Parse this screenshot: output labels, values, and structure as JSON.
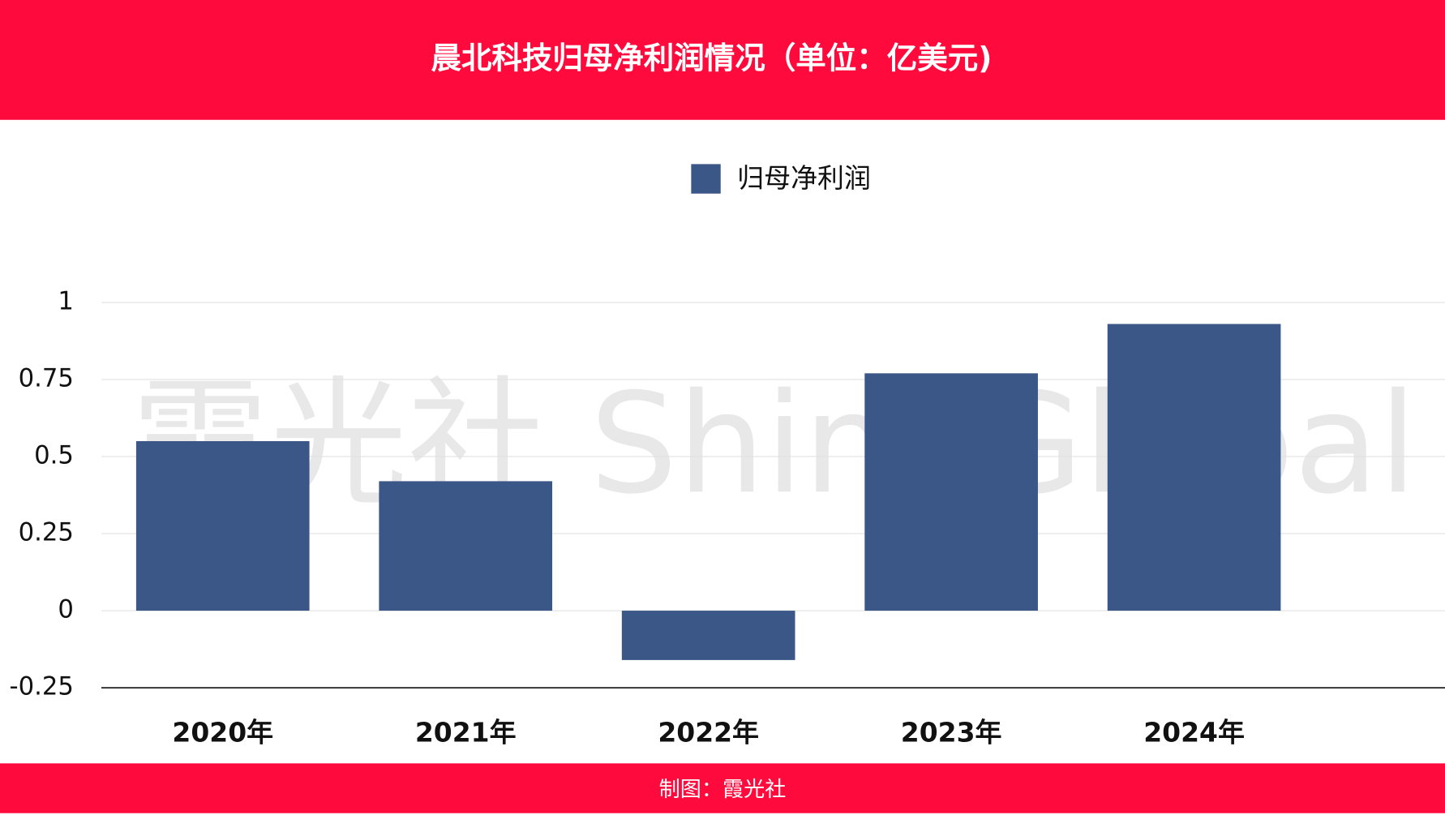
{
  "chart_data": {
    "type": "bar",
    "title": "晨北科技归母净利润情况（单位：亿美元)",
    "categories": [
      "2020年",
      "2021年",
      "2022年",
      "2023年",
      "2024年"
    ],
    "series": [
      {
        "name": "归母净利润",
        "color": "#3a5787",
        "values": [
          0.55,
          0.42,
          -0.16,
          0.77,
          0.93
        ]
      }
    ],
    "ylim": [
      -0.25,
      1
    ],
    "yticks": [
      1,
      0.75,
      0.5,
      0.25,
      0,
      -0.25
    ],
    "grid": true,
    "watermark": "霞光社 ShineGlobal",
    "footer": "制图：霞光社"
  }
}
